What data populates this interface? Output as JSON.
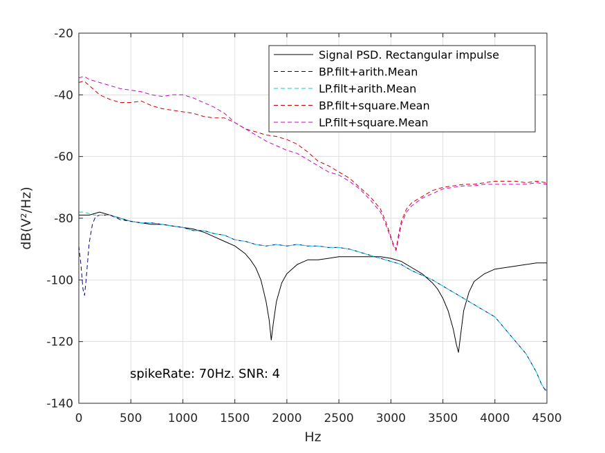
{
  "chart_data": {
    "type": "line",
    "xlabel": "Hz",
    "ylabel": "dB(V²/Hz)",
    "xlim": [
      0,
      4500
    ],
    "ylim": [
      -140,
      -20
    ],
    "xticks": [
      0,
      500,
      1000,
      1500,
      2000,
      2500,
      3000,
      3500,
      4000,
      4500
    ],
    "yticks": [
      -140,
      -120,
      -100,
      -80,
      -60,
      -40,
      -20
    ],
    "xtick_labels": [
      "0",
      "500",
      "1000",
      "1500",
      "2000",
      "2500",
      "3000",
      "3500",
      "4000",
      "4500"
    ],
    "ytick_labels": [
      "-140",
      "-120",
      "-100",
      "-80",
      "-60",
      "-40",
      "-20"
    ],
    "grid": true,
    "legend_position": "top-right",
    "annotation": "spikeRate: 70Hz. SNR: 4",
    "series": [
      {
        "name": "Signal PSD. Rectangular impulse",
        "color": "#000000",
        "dash": "solid",
        "x": [
          0,
          100,
          200,
          300,
          400,
          500,
          600,
          700,
          800,
          900,
          1000,
          1100,
          1200,
          1300,
          1400,
          1500,
          1600,
          1650,
          1700,
          1750,
          1800,
          1830,
          1850,
          1870,
          1900,
          1950,
          2000,
          2100,
          2200,
          2300,
          2400,
          2500,
          2600,
          2700,
          2800,
          2900,
          3000,
          3100,
          3200,
          3300,
          3400,
          3450,
          3500,
          3550,
          3600,
          3630,
          3650,
          3670,
          3700,
          3750,
          3800,
          3900,
          4000,
          4100,
          4200,
          4300,
          4400,
          4450,
          4500
        ],
        "y": [
          -79,
          -79,
          -78,
          -79,
          -80,
          -81,
          -81.5,
          -82,
          -82,
          -82.5,
          -83,
          -83.5,
          -84.5,
          -86,
          -87.5,
          -89,
          -91.5,
          -93.5,
          -96,
          -100,
          -107,
          -113,
          -119.5,
          -114,
          -107,
          -101,
          -98,
          -95,
          -93.5,
          -93.5,
          -93,
          -92.5,
          -92.5,
          -92.5,
          -92.5,
          -92.5,
          -93,
          -94,
          -96,
          -98,
          -101,
          -103,
          -106,
          -110,
          -116,
          -121,
          -123.5,
          -118,
          -110,
          -104,
          -100.5,
          -98,
          -96.5,
          -96,
          -95.5,
          -95,
          -94.5,
          -94.5,
          -94.5
        ]
      },
      {
        "name": "BP.filt+arith.Mean",
        "color": "#00008b",
        "dash": "dashed",
        "x": [
          0,
          20,
          40,
          55,
          70,
          100,
          130,
          160,
          200,
          300,
          400,
          500,
          600,
          700,
          800,
          900,
          1000,
          1100,
          1200,
          1300,
          1400,
          1500,
          1600,
          1700,
          1800,
          1900,
          2000,
          2100,
          2200,
          2300,
          2400,
          2500,
          2600,
          2700,
          2800,
          2900,
          3000,
          3100,
          3200,
          3300,
          3400,
          3500,
          3600,
          3700,
          3800,
          3900,
          4000,
          4100,
          4200,
          4300,
          4400,
          4450,
          4500
        ],
        "y": [
          -89,
          -95,
          -103,
          -105,
          -100,
          -88,
          -82,
          -79.5,
          -79,
          -79,
          -80.5,
          -81,
          -81.5,
          -81.5,
          -82,
          -82.5,
          -83,
          -84,
          -84,
          -85,
          -85.5,
          -87,
          -87.5,
          -88.5,
          -89,
          -88.5,
          -89,
          -88.5,
          -89,
          -89,
          -89.5,
          -89.5,
          -90,
          -91,
          -92,
          -93,
          -94,
          -95,
          -97,
          -98.5,
          -100,
          -102,
          -104,
          -106,
          -108,
          -110,
          -112,
          -116,
          -120,
          -124,
          -130,
          -134,
          -136.5
        ]
      },
      {
        "name": "LP.filt+arith.Mean",
        "color": "#00ced1",
        "dash": "dashed",
        "x": [
          0,
          50,
          100,
          150,
          200,
          300,
          400,
          500,
          600,
          700,
          800,
          900,
          1000,
          1100,
          1200,
          1300,
          1400,
          1500,
          1600,
          1700,
          1800,
          1900,
          2000,
          2100,
          2200,
          2300,
          2400,
          2500,
          2600,
          2700,
          2800,
          2900,
          3000,
          3100,
          3200,
          3300,
          3400,
          3500,
          3600,
          3700,
          3800,
          3900,
          4000,
          4100,
          4200,
          4300,
          4400,
          4450,
          4500
        ],
        "y": [
          -78,
          -78,
          -78.5,
          -79,
          -79,
          -79,
          -80,
          -81,
          -81.5,
          -81.5,
          -82,
          -82.5,
          -83,
          -84,
          -84,
          -85,
          -85.5,
          -87,
          -87.5,
          -88.5,
          -89,
          -88.5,
          -89,
          -88.5,
          -89,
          -89,
          -89.5,
          -89.5,
          -90,
          -91,
          -92,
          -93,
          -94,
          -95,
          -97,
          -98.5,
          -100,
          -102,
          -104,
          -106,
          -108,
          -110,
          -112,
          -116,
          -120,
          -124,
          -130,
          -134,
          -136
        ]
      },
      {
        "name": "BP.filt+square.Mean",
        "color": "#cc0000",
        "dash": "dashed",
        "x": [
          0,
          50,
          100,
          150,
          200,
          300,
          400,
          500,
          600,
          700,
          800,
          900,
          1000,
          1100,
          1200,
          1300,
          1400,
          1500,
          1600,
          1700,
          1800,
          1900,
          2000,
          2100,
          2200,
          2300,
          2400,
          2500,
          2600,
          2700,
          2800,
          2900,
          2950,
          3000,
          3030,
          3050,
          3070,
          3100,
          3150,
          3200,
          3300,
          3400,
          3500,
          3600,
          3700,
          3800,
          3900,
          4000,
          4100,
          4200,
          4300,
          4400,
          4500
        ],
        "y": [
          -36,
          -35.5,
          -37,
          -38.5,
          -40,
          -41.5,
          -42.5,
          -42.5,
          -42,
          -43.5,
          -44.5,
          -45,
          -45.5,
          -46,
          -47,
          -47.5,
          -47.5,
          -49,
          -51,
          -52,
          -53,
          -53.5,
          -54.5,
          -56,
          -58.5,
          -61.5,
          -63,
          -65,
          -67,
          -70,
          -73,
          -77,
          -81,
          -86,
          -89,
          -90,
          -86,
          -81,
          -77,
          -75,
          -73,
          -71,
          -70,
          -69.5,
          -69,
          -69,
          -68.5,
          -68,
          -68,
          -68,
          -68.5,
          -68,
          -68.5
        ]
      },
      {
        "name": "LP.filt+square.Mean",
        "color": "#cc00cc",
        "dash": "dashed",
        "x": [
          0,
          50,
          100,
          200,
          300,
          400,
          500,
          600,
          700,
          800,
          900,
          1000,
          1100,
          1200,
          1300,
          1400,
          1500,
          1600,
          1700,
          1800,
          1900,
          2000,
          2100,
          2200,
          2300,
          2400,
          2500,
          2600,
          2700,
          2800,
          2900,
          2950,
          3000,
          3030,
          3050,
          3070,
          3100,
          3150,
          3200,
          3300,
          3400,
          3500,
          3600,
          3700,
          3800,
          3900,
          4000,
          4100,
          4200,
          4300,
          4400,
          4500
        ],
        "y": [
          -34.5,
          -34,
          -35,
          -36,
          -37,
          -38,
          -38.5,
          -39,
          -40,
          -40.5,
          -40,
          -40,
          -41,
          -42.5,
          -44,
          -46,
          -49,
          -51,
          -53,
          -55,
          -56.5,
          -58,
          -59,
          -61,
          -63,
          -65,
          -66,
          -68,
          -70.5,
          -74,
          -78,
          -82,
          -86.5,
          -89.5,
          -90.5,
          -87,
          -82,
          -78,
          -76,
          -73.5,
          -72,
          -70.5,
          -70,
          -69.5,
          -69.5,
          -69,
          -69,
          -69,
          -69,
          -69,
          -68.5,
          -69
        ]
      }
    ]
  }
}
